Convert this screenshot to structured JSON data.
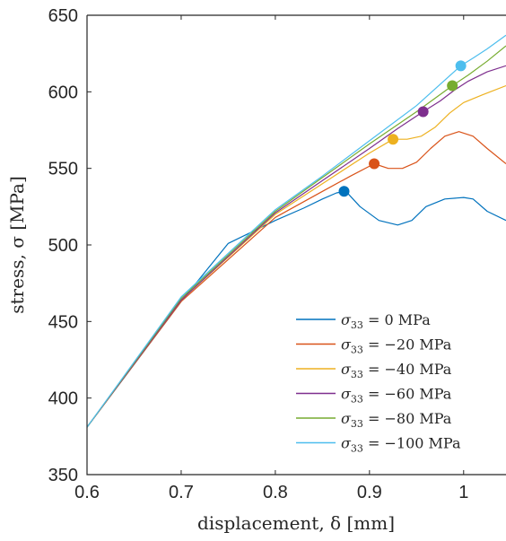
{
  "chart_data": {
    "type": "line",
    "xlabel": "displacement, δ [mm]",
    "ylabel": "stress, σ [MPa]",
    "xlim": [
      0.6,
      1.045
    ],
    "ylim": [
      350,
      650
    ],
    "xticks": [
      0.6,
      0.7,
      0.8,
      0.9,
      1
    ],
    "xtick_labels": [
      "0.6",
      "0.7",
      "0.8",
      "0.9",
      "1"
    ],
    "yticks": [
      350,
      400,
      450,
      500,
      550,
      600,
      650
    ],
    "ytick_labels": [
      "350",
      "400",
      "450",
      "500",
      "550",
      "600",
      "650"
    ],
    "grid": false,
    "legend_position": "bottom-right",
    "series": [
      {
        "name": "σ33 = 0 MPa",
        "legend": {
          "sub": "33",
          "value": "0 MPa"
        },
        "color": "#0072BD",
        "x": [
          0.6,
          0.65,
          0.7,
          0.75,
          0.8,
          0.83,
          0.85,
          0.865,
          0.875,
          0.89,
          0.91,
          0.93,
          0.945,
          0.96,
          0.98,
          1.0,
          1.01,
          1.025,
          1.045
        ],
        "y": [
          381,
          422,
          463,
          501,
          516,
          524,
          530,
          534,
          535,
          525,
          516,
          513,
          516,
          525,
          530,
          531,
          530,
          522,
          516
        ],
        "marker": {
          "x": 0.873,
          "y": 535
        }
      },
      {
        "name": "σ33 = −20 MPa",
        "legend": {
          "sub": "33",
          "value": "−20 MPa"
        },
        "color": "#D95319",
        "x": [
          0.6,
          0.7,
          0.8,
          0.85,
          0.88,
          0.905,
          0.92,
          0.935,
          0.95,
          0.965,
          0.98,
          0.995,
          1.01,
          1.025,
          1.045
        ],
        "y": [
          381,
          463,
          518,
          535,
          545,
          553,
          550,
          550,
          554,
          563,
          571,
          574,
          571,
          563,
          553
        ],
        "marker": {
          "x": 0.905,
          "y": 553
        }
      },
      {
        "name": "σ33 = −40 MPa",
        "legend": {
          "sub": "33",
          "value": "−40 MPa"
        },
        "color": "#EDB120",
        "x": [
          0.6,
          0.7,
          0.8,
          0.85,
          0.9,
          0.925,
          0.94,
          0.955,
          0.97,
          0.985,
          1.0,
          1.02,
          1.045
        ],
        "y": [
          381,
          464,
          520,
          540,
          560,
          569,
          569,
          571,
          577,
          586,
          593,
          598,
          604
        ],
        "marker": {
          "x": 0.925,
          "y": 569
        }
      },
      {
        "name": "σ33 = −60 MPa",
        "legend": {
          "sub": "33",
          "value": "−60 MPa"
        },
        "color": "#7E2F8E",
        "x": [
          0.6,
          0.7,
          0.8,
          0.85,
          0.9,
          0.93,
          0.957,
          0.975,
          0.99,
          1.005,
          1.025,
          1.045
        ],
        "y": [
          381,
          464,
          521,
          542,
          563,
          576,
          587,
          594,
          601,
          607,
          613,
          617
        ],
        "marker": {
          "x": 0.957,
          "y": 587
        }
      },
      {
        "name": "σ33 = −80 MPa",
        "legend": {
          "sub": "33",
          "value": "−80 MPa"
        },
        "color": "#77AC30",
        "x": [
          0.6,
          0.7,
          0.8,
          0.85,
          0.9,
          0.95,
          0.988,
          1.005,
          1.025,
          1.045
        ],
        "y": [
          381,
          465,
          522,
          544,
          566,
          587,
          604,
          611,
          620,
          630
        ],
        "marker": {
          "x": 0.988,
          "y": 604
        }
      },
      {
        "name": "σ33 = −100 MPa",
        "legend": {
          "sub": "33",
          "value": "−100 MPa"
        },
        "color": "#4DBEEE",
        "x": [
          0.6,
          0.7,
          0.8,
          0.85,
          0.9,
          0.95,
          0.997,
          1.01,
          1.025,
          1.045
        ],
        "y": [
          381,
          466,
          523,
          545,
          568,
          591,
          617,
          622,
          628,
          637
        ],
        "marker": {
          "x": 0.997,
          "y": 617
        }
      }
    ]
  }
}
